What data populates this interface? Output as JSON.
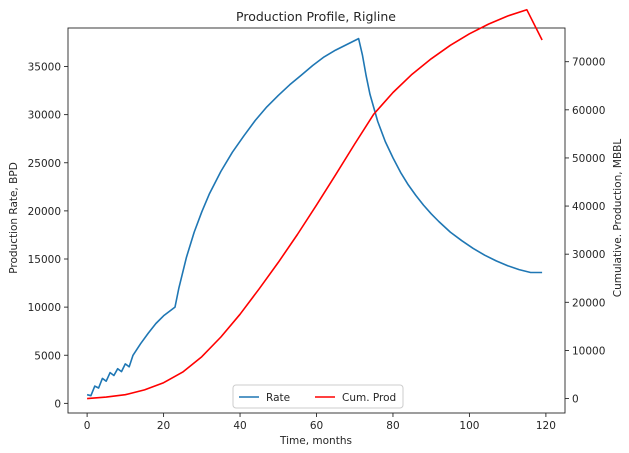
{
  "chart_data": {
    "type": "line",
    "title": "Production Profile, Rigline",
    "xlabel": "Time, months",
    "ylabel_left": "Production Rate, BPD",
    "ylabel_right": "Cumulative. Production, MBBL",
    "xlim": [
      -5,
      125
    ],
    "ylim_left": [
      -1000,
      39000
    ],
    "ylim_right": [
      -3000,
      77000
    ],
    "x_ticks": [
      0,
      20,
      40,
      60,
      80,
      100,
      120
    ],
    "y_left_ticks": [
      0,
      5000,
      10000,
      15000,
      20000,
      25000,
      30000,
      35000
    ],
    "y_right_ticks": [
      0,
      10000,
      20000,
      30000,
      40000,
      50000,
      60000,
      70000
    ],
    "grid": false,
    "legend_position": "bottom-center",
    "colors": {
      "rate": "#1f77b4",
      "cum": "#ff0000"
    },
    "series": [
      {
        "name": "Rate",
        "axis": "left",
        "x": [
          0,
          1,
          2,
          3,
          4,
          5,
          6,
          7,
          8,
          9,
          10,
          11,
          12,
          14,
          16,
          18,
          20,
          23,
          24,
          26,
          28,
          30,
          32,
          35,
          38,
          41,
          44,
          47,
          50,
          53,
          56,
          59,
          62,
          65,
          68,
          71,
          72,
          73,
          74,
          76,
          78,
          80,
          82,
          84,
          86,
          88,
          90,
          92,
          95,
          98,
          101,
          104,
          107,
          110,
          113,
          116,
          119
        ],
        "values": [
          900,
          800,
          1800,
          1600,
          2600,
          2300,
          3200,
          2900,
          3600,
          3300,
          4100,
          3800,
          5000,
          6200,
          7300,
          8300,
          9100,
          10000,
          12000,
          15200,
          17800,
          19900,
          21800,
          24100,
          26100,
          27800,
          29400,
          30800,
          32000,
          33100,
          34100,
          35100,
          36000,
          36700,
          37300,
          37900,
          36200,
          34000,
          32100,
          29300,
          27200,
          25500,
          24000,
          22700,
          21600,
          20600,
          19700,
          18900,
          17800,
          16900,
          16100,
          15400,
          14800,
          14300,
          13900,
          13600,
          13600
        ]
      },
      {
        "name": "Cum. Prod",
        "axis": "right",
        "x": [
          0,
          5,
          10,
          15,
          20,
          25,
          30,
          35,
          40,
          45,
          50,
          55,
          60,
          65,
          70,
          75,
          80,
          85,
          90,
          95,
          100,
          105,
          110,
          115,
          119
        ],
        "values": [
          0,
          300,
          800,
          1800,
          3300,
          5500,
          8700,
          12800,
          17500,
          22800,
          28300,
          34100,
          40200,
          46500,
          52900,
          59100,
          63600,
          67400,
          70600,
          73400,
          75800,
          77800,
          79500,
          80800,
          74500
        ]
      }
    ]
  }
}
